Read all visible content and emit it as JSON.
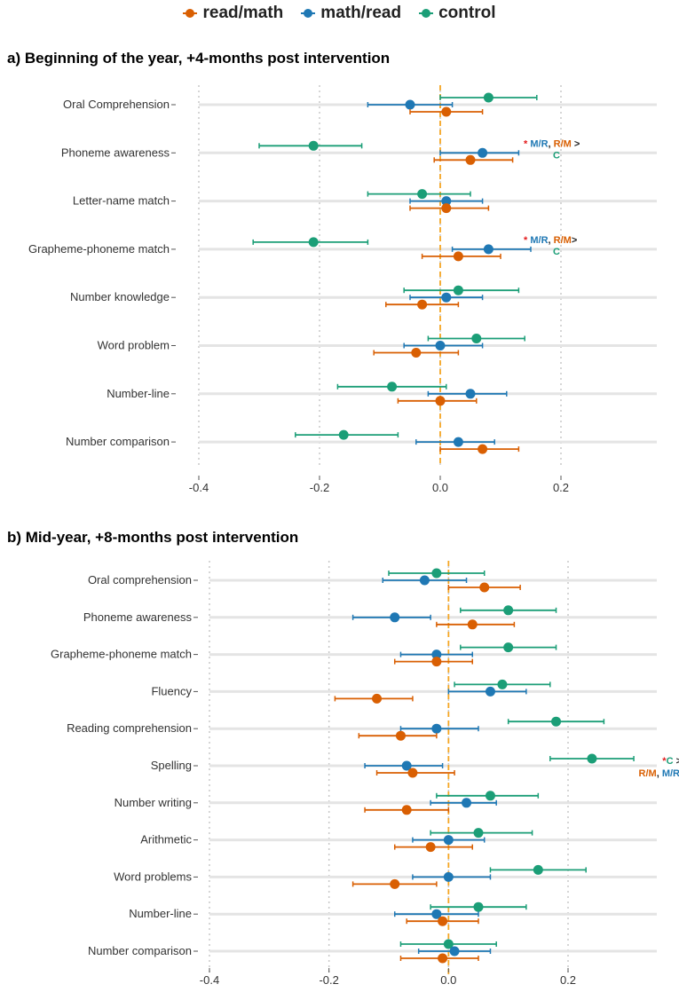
{
  "legend": [
    {
      "name": "read/math",
      "color": "#d95f02"
    },
    {
      "name": "math/read",
      "color": "#1f78b4"
    },
    {
      "name": "control",
      "color": "#1b9e77"
    }
  ],
  "colors": {
    "read_math": "#d95f02",
    "math_read": "#1f78b4",
    "control": "#1b9e77",
    "zero_line": "#f5a623",
    "star": "#e31a1c",
    "dark": "#222222"
  },
  "chart_data": [
    {
      "type": "scatter",
      "title": "a) Beginning of the year, +4-months post intervention",
      "xlim": [
        -0.4,
        0.2
      ],
      "xticks": [
        "-0.4",
        "-0.2",
        "0.0",
        "0.2"
      ],
      "xtick_values": [
        -0.4,
        -0.2,
        0.0,
        0.2
      ],
      "xlabel": "",
      "ylabel": "",
      "categories": [
        "Oral Comprehension",
        "Phoneme awareness",
        "Letter-name match",
        "Grapheme-phoneme match",
        "Number knowledge",
        "Word problem",
        "Number-line",
        "Number comparison"
      ],
      "series": [
        {
          "name": "read/math",
          "values": [
            0.01,
            0.05,
            0.01,
            0.03,
            -0.03,
            -0.04,
            0.0,
            0.07
          ],
          "lower": [
            -0.05,
            -0.01,
            -0.05,
            -0.03,
            -0.09,
            -0.11,
            -0.07,
            0.0
          ],
          "upper": [
            0.07,
            0.12,
            0.08,
            0.1,
            0.03,
            0.03,
            0.06,
            0.13
          ]
        },
        {
          "name": "math/read",
          "values": [
            -0.05,
            0.07,
            0.01,
            0.08,
            0.01,
            0.0,
            0.05,
            0.03
          ],
          "lower": [
            -0.12,
            0.0,
            -0.05,
            0.02,
            -0.05,
            -0.06,
            -0.02,
            -0.04
          ],
          "upper": [
            0.02,
            0.13,
            0.07,
            0.15,
            0.07,
            0.07,
            0.11,
            0.09
          ]
        },
        {
          "name": "control",
          "values": [
            0.08,
            -0.21,
            -0.03,
            -0.21,
            0.03,
            0.06,
            -0.08,
            -0.16
          ],
          "lower": [
            0.0,
            -0.3,
            -0.12,
            -0.31,
            -0.06,
            -0.02,
            -0.17,
            -0.24
          ],
          "upper": [
            0.16,
            -0.13,
            0.05,
            -0.12,
            0.13,
            0.14,
            0.01,
            -0.07
          ]
        }
      ],
      "annotations": [
        {
          "category": "Phoneme awareness",
          "line1": [
            {
              "text": "* ",
              "role": "star"
            },
            {
              "text": "M/R",
              "role": "math_read"
            },
            {
              "text": ", ",
              "role": "dark"
            },
            {
              "text": "R/M",
              "role": "read_math"
            },
            {
              "text": " >",
              "role": "dark"
            }
          ],
          "line2": [
            {
              "text": "C",
              "role": "control"
            }
          ]
        },
        {
          "category": "Grapheme-phoneme match",
          "line1": [
            {
              "text": "* ",
              "role": "star"
            },
            {
              "text": "M/R",
              "role": "math_read"
            },
            {
              "text": ", ",
              "role": "dark"
            },
            {
              "text": "R/M",
              "role": "read_math"
            },
            {
              "text": ">",
              "role": "dark"
            }
          ],
          "line2": [
            {
              "text": "C",
              "role": "control"
            }
          ]
        }
      ]
    },
    {
      "type": "scatter",
      "title": "b) Mid-year, +8-months post intervention",
      "xlim": [
        -0.4,
        0.2
      ],
      "xticks": [
        "-0.4",
        "-0.2",
        "0.0",
        "0.2"
      ],
      "xtick_values": [
        -0.4,
        -0.2,
        0.0,
        0.2
      ],
      "xlabel": "",
      "ylabel": "",
      "categories": [
        "Oral comprehension",
        "Phoneme awareness",
        "Grapheme-phoneme match",
        "Fluency",
        "Reading comprehension",
        "Spelling",
        "Number writing",
        "Arithmetic",
        "Word problems",
        "Number-line",
        "Number comparison"
      ],
      "series": [
        {
          "name": "read/math",
          "values": [
            0.06,
            0.04,
            -0.02,
            -0.12,
            -0.08,
            -0.06,
            -0.07,
            -0.03,
            -0.09,
            -0.01,
            -0.01
          ],
          "lower": [
            0.0,
            -0.02,
            -0.09,
            -0.19,
            -0.15,
            -0.12,
            -0.14,
            -0.09,
            -0.16,
            -0.07,
            -0.08
          ],
          "upper": [
            0.12,
            0.11,
            0.04,
            -0.06,
            -0.02,
            0.01,
            0.0,
            0.04,
            -0.02,
            0.05,
            0.05
          ]
        },
        {
          "name": "math/read",
          "values": [
            -0.04,
            -0.09,
            -0.02,
            0.07,
            -0.02,
            -0.07,
            0.03,
            0.0,
            0.0,
            -0.02,
            0.01
          ],
          "lower": [
            -0.11,
            -0.16,
            -0.08,
            0.0,
            -0.08,
            -0.14,
            -0.03,
            -0.06,
            -0.06,
            -0.09,
            -0.05
          ],
          "upper": [
            0.03,
            -0.03,
            0.04,
            0.13,
            0.05,
            -0.01,
            0.08,
            0.06,
            0.07,
            0.05,
            0.07
          ]
        },
        {
          "name": "control",
          "values": [
            -0.02,
            0.1,
            0.1,
            0.09,
            0.18,
            0.24,
            0.07,
            0.05,
            0.15,
            0.05,
            0.0
          ],
          "lower": [
            -0.1,
            0.02,
            0.02,
            0.01,
            0.1,
            0.17,
            -0.02,
            -0.03,
            0.07,
            -0.03,
            -0.08
          ],
          "upper": [
            0.06,
            0.18,
            0.18,
            0.17,
            0.26,
            0.31,
            0.15,
            0.14,
            0.23,
            0.13,
            0.08
          ]
        }
      ],
      "annotations": [
        {
          "category": "Spelling",
          "line1": [
            {
              "text": "*",
              "role": "star"
            },
            {
              "text": "C",
              "role": "control"
            },
            {
              "text": " >",
              "role": "dark"
            }
          ],
          "line2": [
            {
              "text": "R/M",
              "role": "read_math"
            },
            {
              "text": ", ",
              "role": "dark"
            },
            {
              "text": "M/R",
              "role": "math_read"
            }
          ]
        }
      ]
    }
  ]
}
